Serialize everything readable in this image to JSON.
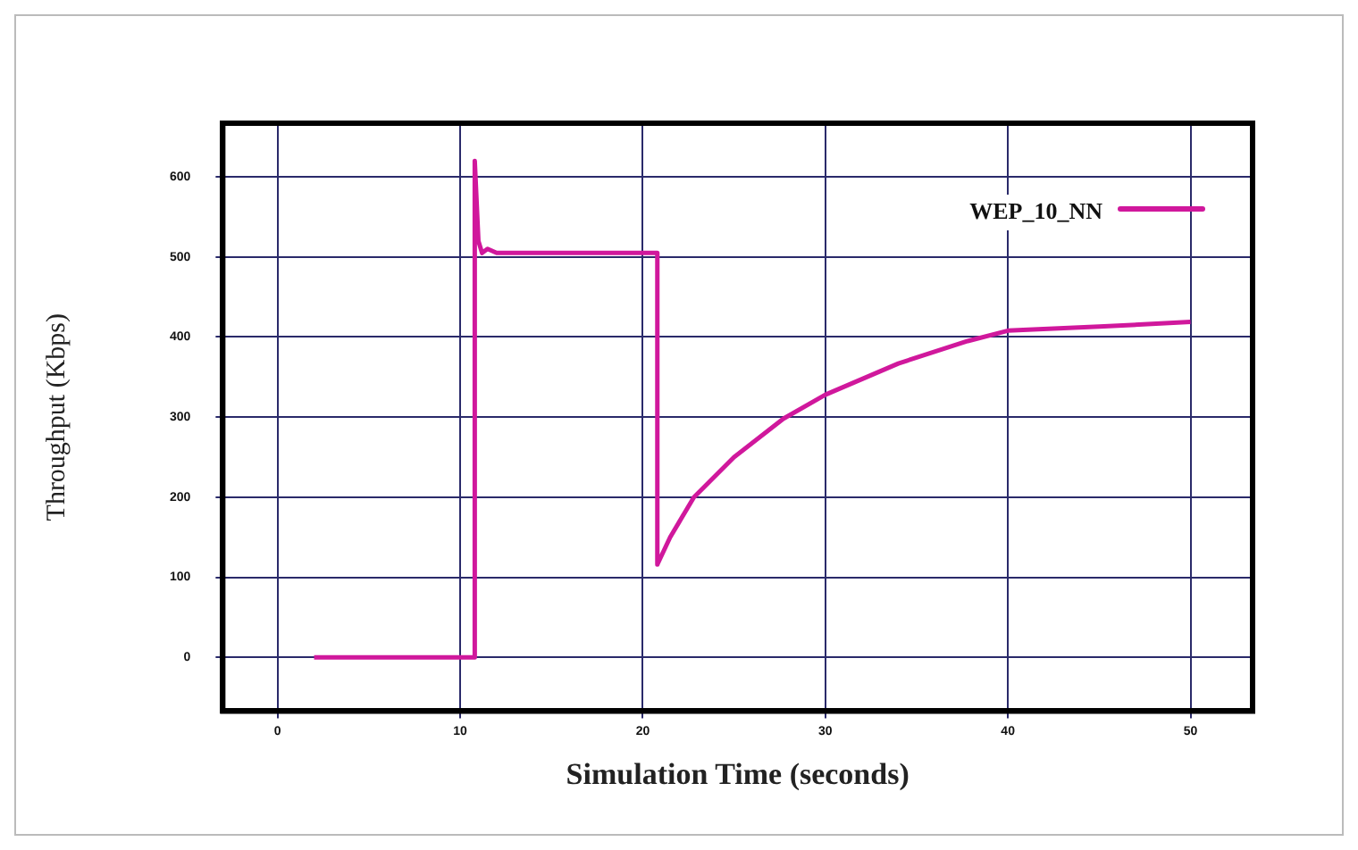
{
  "chart_data": {
    "type": "line",
    "xlabel": "Simulation Time (seconds)",
    "ylabel": "Throughput (Kbps)",
    "x": [
      2,
      10.8,
      10.8,
      11,
      11.2,
      11.5,
      12,
      20.8,
      20.8,
      21.5,
      22.8,
      25,
      27.7,
      30,
      34,
      37.8,
      40,
      45,
      50
    ],
    "series": [
      {
        "name": "WEP_10_NN",
        "color": "#d0189c",
        "values": [
          0,
          0,
          620,
          520,
          505,
          510,
          505,
          505,
          116,
          150,
          200,
          250,
          298,
          328,
          367,
          395,
          408,
          413,
          419
        ]
      }
    ],
    "xlim": [
      -3,
      53.4
    ],
    "xticks": [
      0,
      10,
      20,
      30,
      40,
      50
    ],
    "ylim": [
      -67,
      667
    ],
    "yticks": [
      0,
      100,
      200,
      300,
      400,
      500,
      600
    ],
    "grid": true,
    "legend": "top right",
    "marker": "none",
    "line_style": "solid"
  }
}
